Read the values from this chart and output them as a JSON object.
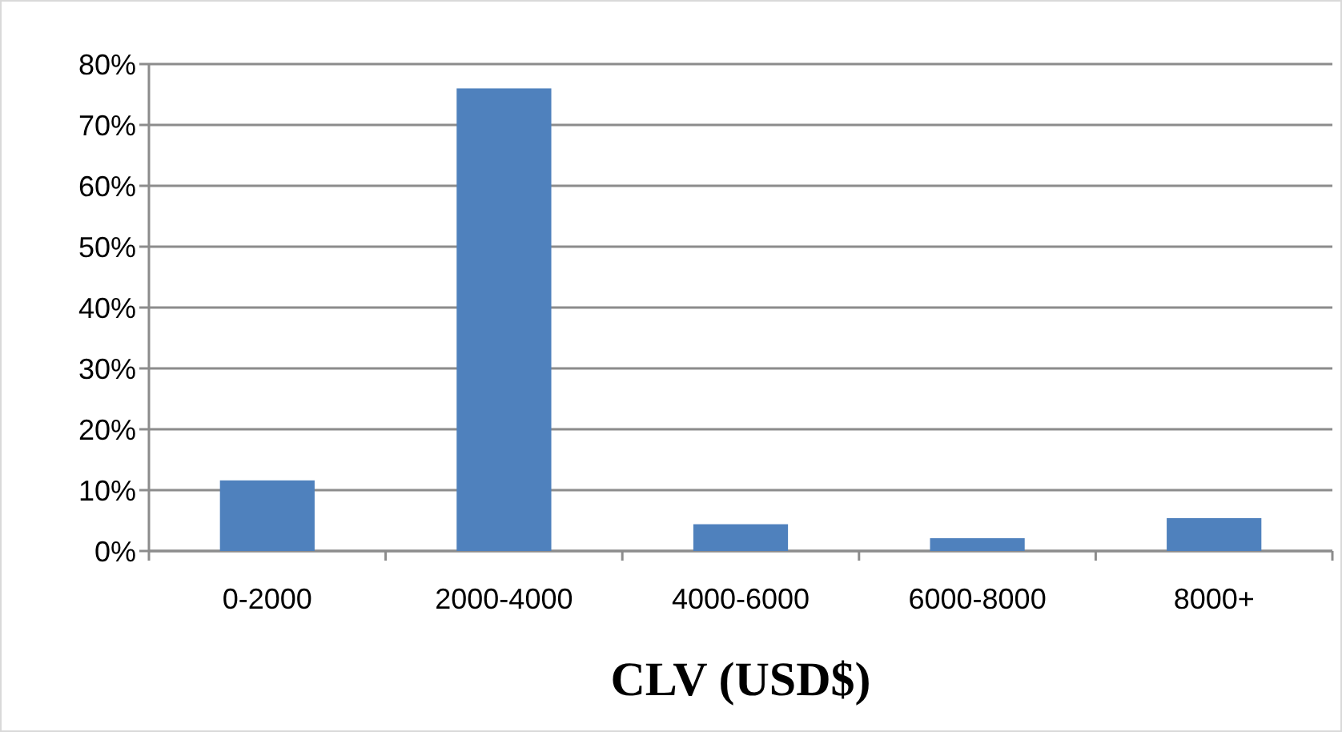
{
  "chart_data": {
    "type": "bar",
    "xlabel": "CLV (USD$)",
    "categories": [
      "0-2000",
      "2000-4000",
      "4000-6000",
      "6000-8000",
      "8000+"
    ],
    "values": [
      11.6,
      76,
      4.4,
      2.1,
      5.4
    ],
    "color": "#4f81bd",
    "ylim": [
      0,
      80
    ],
    "yticks": [
      {
        "value": 0,
        "label": "0%"
      },
      {
        "value": 10,
        "label": "10%"
      },
      {
        "value": 20,
        "label": "20%"
      },
      {
        "value": 30,
        "label": "30%"
      },
      {
        "value": 40,
        "label": "40%"
      },
      {
        "value": 50,
        "label": "50%"
      },
      {
        "value": 60,
        "label": "60%"
      },
      {
        "value": 70,
        "label": "70%"
      },
      {
        "value": 80,
        "label": "80%"
      }
    ],
    "grid": "y"
  }
}
